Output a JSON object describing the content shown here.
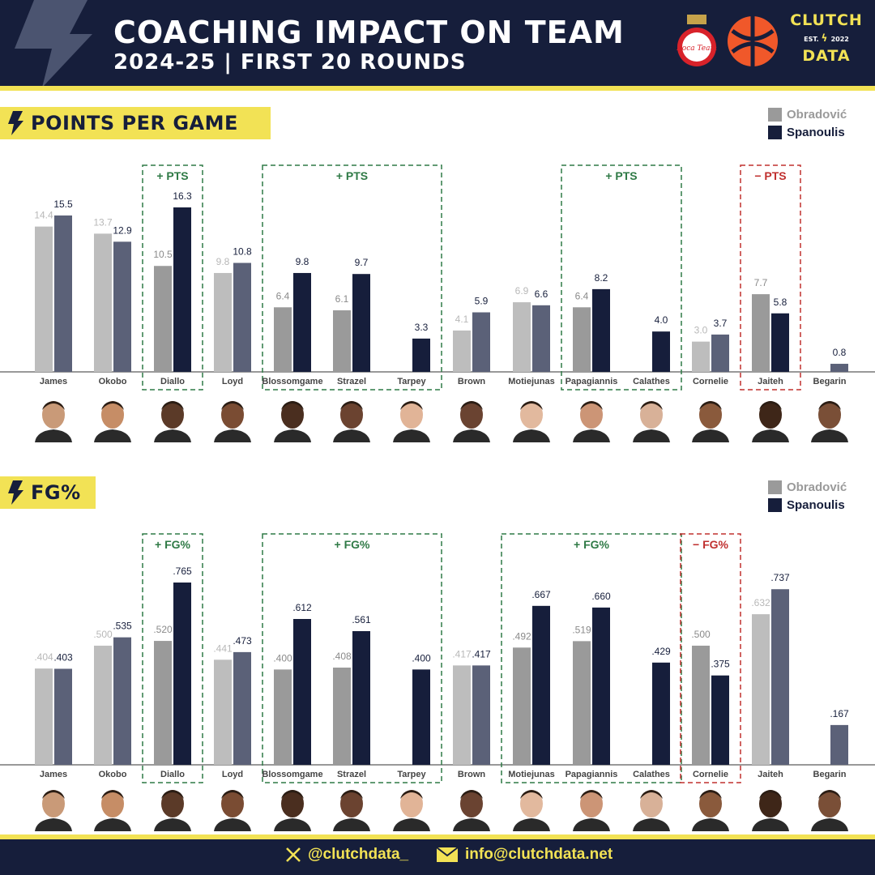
{
  "header": {
    "title": "COACHING IMPACT ON TEAM",
    "subtitle": "2024-25 | FIRST 20 ROUNDS",
    "brand_line1": "CLUTCH",
    "brand_est": "EST.",
    "brand_year": "2022",
    "brand_line2": "DATA",
    "club_logo_text": "Roca Team"
  },
  "legend": {
    "series_a": "Obradović",
    "series_b": "Spanoulis"
  },
  "colors": {
    "navy": "#161e3b",
    "yellow": "#f2e255",
    "gray_light": "#bdbdbd",
    "gray_mid": "#9a9a9a",
    "slate": "#5b6178",
    "green": "#2f7a46",
    "red": "#c0302f"
  },
  "footer": {
    "twitter": "@clutchdata_",
    "email": "info@clutchdata.net"
  },
  "chart_data": [
    {
      "type": "bar",
      "title": "POINTS PER GAME",
      "categories": [
        "James",
        "Okobo",
        "Diallo",
        "Loyd",
        "Blossomgame",
        "Strazel",
        "Tarpey",
        "Brown",
        "Motiejunas",
        "Papagiannis",
        "Calathes",
        "Cornelie",
        "Jaiteh",
        "Begarin"
      ],
      "series": [
        {
          "name": "Obradović",
          "values": [
            14.4,
            13.7,
            10.5,
            9.8,
            6.4,
            6.1,
            null,
            4.1,
            6.9,
            6.4,
            null,
            3.0,
            7.7,
            null
          ]
        },
        {
          "name": "Spanoulis",
          "values": [
            15.5,
            12.9,
            16.3,
            10.8,
            9.8,
            9.7,
            3.3,
            5.9,
            6.6,
            8.2,
            4.0,
            3.7,
            5.8,
            0.8
          ]
        }
      ],
      "labels_a": [
        "14.4",
        "13.7",
        "10.5",
        "9.8",
        "6.4",
        "6.1",
        "",
        "4.1",
        "6.9",
        "6.4",
        "",
        "3.0",
        "7.7",
        ""
      ],
      "labels_b": [
        "15.5",
        "12.9",
        "16.3",
        "10.8",
        "9.8",
        "9.7",
        "3.3",
        "5.9",
        "6.6",
        "8.2",
        "4.0",
        "3.7",
        "5.8",
        "0.8"
      ],
      "highlighted": [
        2,
        4,
        5,
        6,
        9,
        10,
        12
      ],
      "annotations": [
        {
          "text": "+ PTS",
          "from": 2,
          "to": 2,
          "kind": "positive"
        },
        {
          "text": "+ PTS",
          "from": 4,
          "to": 6,
          "kind": "positive"
        },
        {
          "text": "+ PTS",
          "from": 9,
          "to": 10,
          "kind": "positive"
        },
        {
          "text": "− PTS",
          "from": 12,
          "to": 12,
          "kind": "negative"
        }
      ],
      "ylim": [
        0,
        16.3
      ]
    },
    {
      "type": "bar",
      "title": "FG%",
      "categories": [
        "James",
        "Okobo",
        "Diallo",
        "Loyd",
        "Blossomgame",
        "Strazel",
        "Tarpey",
        "Brown",
        "Motiejunas",
        "Papagiannis",
        "Calathes",
        "Cornelie",
        "Jaiteh",
        "Begarin"
      ],
      "series": [
        {
          "name": "Obradović",
          "values": [
            0.404,
            0.5,
            0.52,
            0.441,
            0.4,
            0.408,
            null,
            0.417,
            0.492,
            0.519,
            null,
            0.5,
            0.632,
            null
          ]
        },
        {
          "name": "Spanoulis",
          "values": [
            0.403,
            0.535,
            0.765,
            0.473,
            0.612,
            0.561,
            0.4,
            0.417,
            0.667,
            0.66,
            0.429,
            0.375,
            0.737,
            0.167
          ]
        }
      ],
      "labels_a": [
        ".404",
        ".500",
        ".520",
        ".441",
        ".400",
        ".408",
        "",
        ".417",
        ".492",
        ".519",
        "",
        ".500",
        ".632",
        ""
      ],
      "labels_b": [
        ".403",
        ".535",
        ".765",
        ".473",
        ".612",
        ".561",
        ".400",
        ".417",
        ".667",
        ".660",
        ".429",
        ".375",
        ".737",
        ".167"
      ],
      "highlighted": [
        2,
        4,
        5,
        6,
        8,
        9,
        10,
        11
      ],
      "annotations": [
        {
          "text": "+ FG%",
          "from": 2,
          "to": 2,
          "kind": "positive"
        },
        {
          "text": "+ FG%",
          "from": 4,
          "to": 6,
          "kind": "positive"
        },
        {
          "text": "+ FG%",
          "from": 8,
          "to": 10,
          "kind": "positive"
        },
        {
          "text": "− FG%",
          "from": 11,
          "to": 11,
          "kind": "negative"
        }
      ],
      "ylim": [
        0,
        0.765
      ]
    }
  ]
}
